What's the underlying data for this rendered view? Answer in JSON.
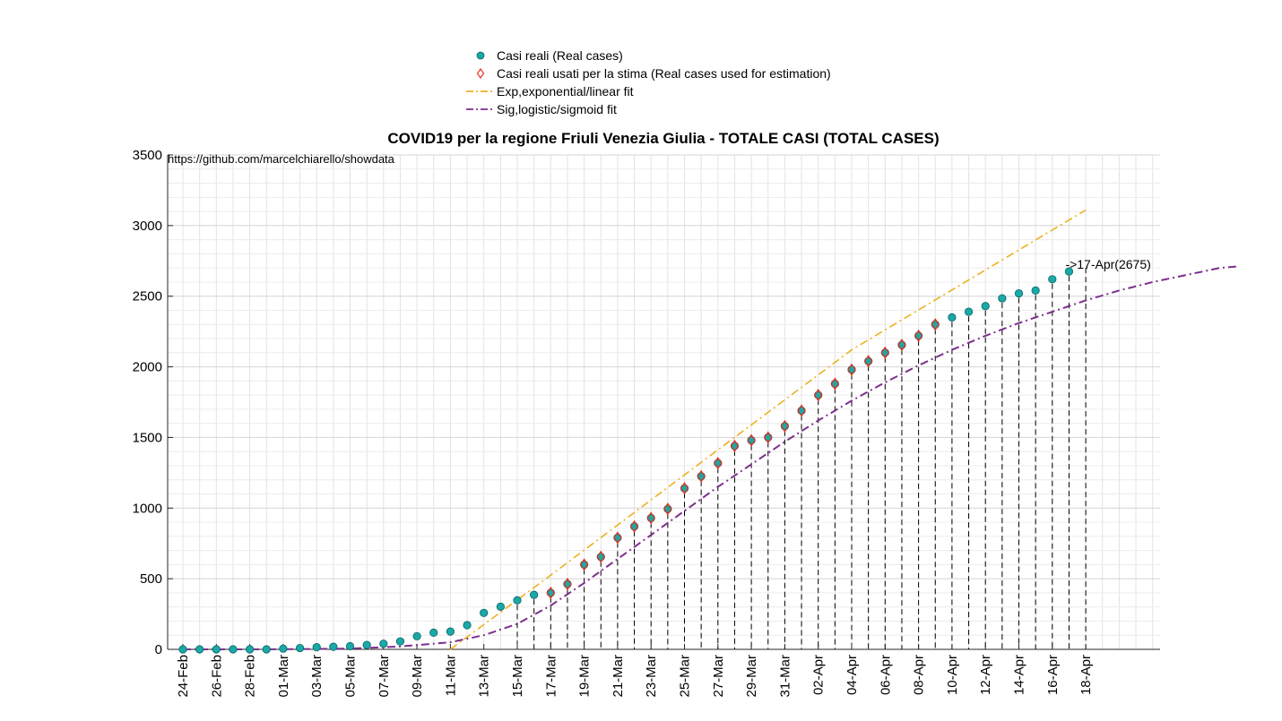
{
  "chart_data": {
    "type": "scatter",
    "title": "COVID19 per la regione Friuli Venezia Giulia - TOTALE CASI (TOTAL CASES)",
    "note": "https://github.com/marcelchiarello/showdata",
    "xlabel": "",
    "ylabel": "",
    "ylim": [
      0,
      3500
    ],
    "yticks": [
      0,
      500,
      1000,
      1500,
      2000,
      2500,
      3000,
      3500
    ],
    "x_tick_labels": [
      "24-Feb",
      "26-Feb",
      "28-Feb",
      "01-Mar",
      "03-Mar",
      "05-Mar",
      "07-Mar",
      "09-Mar",
      "11-Mar",
      "13-Mar",
      "15-Mar",
      "17-Mar",
      "19-Mar",
      "21-Mar",
      "23-Mar",
      "25-Mar",
      "27-Mar",
      "29-Mar",
      "31-Mar",
      "02-Apr",
      "04-Apr",
      "06-Apr",
      "08-Apr",
      "10-Apr",
      "12-Apr",
      "14-Apr",
      "16-Apr",
      "18-Apr"
    ],
    "grid": true,
    "legend_position": "top-center",
    "legend": [
      {
        "label": "Casi reali (Real cases)",
        "marker": "filled-circle",
        "color": "#1aa8a8"
      },
      {
        "label": "Casi reali usati per la stima (Real cases used for estimation)",
        "marker": "diamond",
        "color": "#e8321e"
      },
      {
        "label": "Exp,exponential/linear fit",
        "marker": "dash-line",
        "color": "#edb120"
      },
      {
        "label": "Sig,logistic/sigmoid fit",
        "marker": "dashdot-line",
        "color": "#7e2f8e"
      }
    ],
    "dates": [
      "24-Feb",
      "25-Feb",
      "26-Feb",
      "27-Feb",
      "28-Feb",
      "29-Feb",
      "01-Mar",
      "02-Mar",
      "03-Mar",
      "04-Mar",
      "05-Mar",
      "06-Mar",
      "07-Mar",
      "08-Mar",
      "09-Mar",
      "10-Mar",
      "11-Mar",
      "12-Mar",
      "13-Mar",
      "14-Mar",
      "15-Mar",
      "16-Mar",
      "17-Mar",
      "18-Mar",
      "19-Mar",
      "20-Mar",
      "21-Mar",
      "22-Mar",
      "23-Mar",
      "24-Mar",
      "25-Mar",
      "26-Mar",
      "27-Mar",
      "28-Mar",
      "29-Mar",
      "30-Mar",
      "31-Mar",
      "01-Apr",
      "02-Apr",
      "03-Apr",
      "04-Apr",
      "05-Apr",
      "06-Apr",
      "07-Apr",
      "08-Apr",
      "09-Apr",
      "10-Apr",
      "11-Apr",
      "12-Apr",
      "13-Apr",
      "14-Apr",
      "15-Apr",
      "16-Apr",
      "17-Apr"
    ],
    "series": [
      {
        "name": "Casi reali (Real cases)",
        "values": [
          0,
          0,
          0,
          0,
          0,
          0,
          5,
          9,
          15,
          18,
          22,
          31,
          40,
          56,
          93,
          118,
          126,
          171,
          258,
          302,
          347,
          386,
          400,
          462,
          600,
          655,
          790,
          870,
          930,
          994,
          1140,
          1225,
          1318,
          1440,
          1480,
          1500,
          1580,
          1690,
          1800,
          1880,
          1980,
          2040,
          2100,
          2155,
          2220,
          2300,
          2350,
          2390,
          2430,
          2485,
          2520,
          2540,
          2620,
          2675
        ]
      },
      {
        "name": "Casi reali usati per la stima (Real cases used for estimation)",
        "start_index": 22,
        "values": [
          400,
          462,
          600,
          655,
          790,
          870,
          930,
          994,
          1140,
          1225,
          1318,
          1440,
          1480,
          1500,
          1580,
          1690,
          1800,
          1880,
          1980,
          2040,
          2100,
          2155,
          2220,
          2300
        ]
      },
      {
        "name": "Exp,exponential/linear fit",
        "points": [
          [
            16,
            0
          ],
          [
            18,
            175
          ],
          [
            22,
            525
          ],
          [
            30,
            1235
          ],
          [
            40,
            2120
          ],
          [
            54,
            3110
          ]
        ]
      },
      {
        "name": "Sig,logistic/sigmoid fit",
        "points": [
          [
            0,
            0
          ],
          [
            5,
            0
          ],
          [
            10,
            5
          ],
          [
            13,
            20
          ],
          [
            16,
            50
          ],
          [
            18,
            100
          ],
          [
            20,
            180
          ],
          [
            22,
            310
          ],
          [
            24,
            470
          ],
          [
            26,
            640
          ],
          [
            28,
            810
          ],
          [
            30,
            980
          ],
          [
            32,
            1150
          ],
          [
            34,
            1310
          ],
          [
            36,
            1470
          ],
          [
            38,
            1620
          ],
          [
            40,
            1760
          ],
          [
            42,
            1890
          ],
          [
            44,
            2010
          ],
          [
            46,
            2120
          ],
          [
            48,
            2220
          ],
          [
            50,
            2310
          ],
          [
            52,
            2390
          ],
          [
            54,
            2470
          ],
          [
            56,
            2540
          ],
          [
            58,
            2600
          ],
          [
            60,
            2650
          ],
          [
            62,
            2700
          ],
          [
            63,
            2710
          ]
        ]
      }
    ],
    "annotation": {
      "text": "->17-Apr(2675)",
      "date": "17-Apr",
      "value": 2675
    }
  }
}
